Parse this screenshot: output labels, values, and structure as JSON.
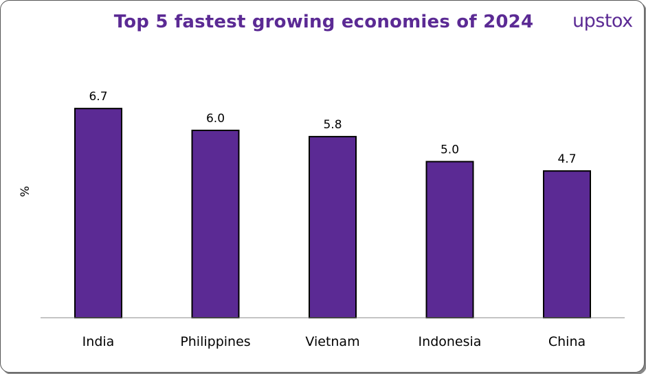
{
  "chart_data": {
    "type": "bar",
    "title": "Top 5 fastest growing economies of 2024",
    "ylabel": "%",
    "xlabel": "",
    "categories": [
      "India",
      "Philippines",
      "Vietnam",
      "Indonesia",
      "China"
    ],
    "values": [
      6.7,
      6.0,
      5.8,
      5.0,
      4.7
    ],
    "data_labels": [
      "6.7",
      "6.0",
      "5.8",
      "5.0",
      "4.7"
    ],
    "ylim": [
      0,
      8
    ],
    "grid": false,
    "bar_color": "#5b2a94"
  },
  "logo": "upstox"
}
